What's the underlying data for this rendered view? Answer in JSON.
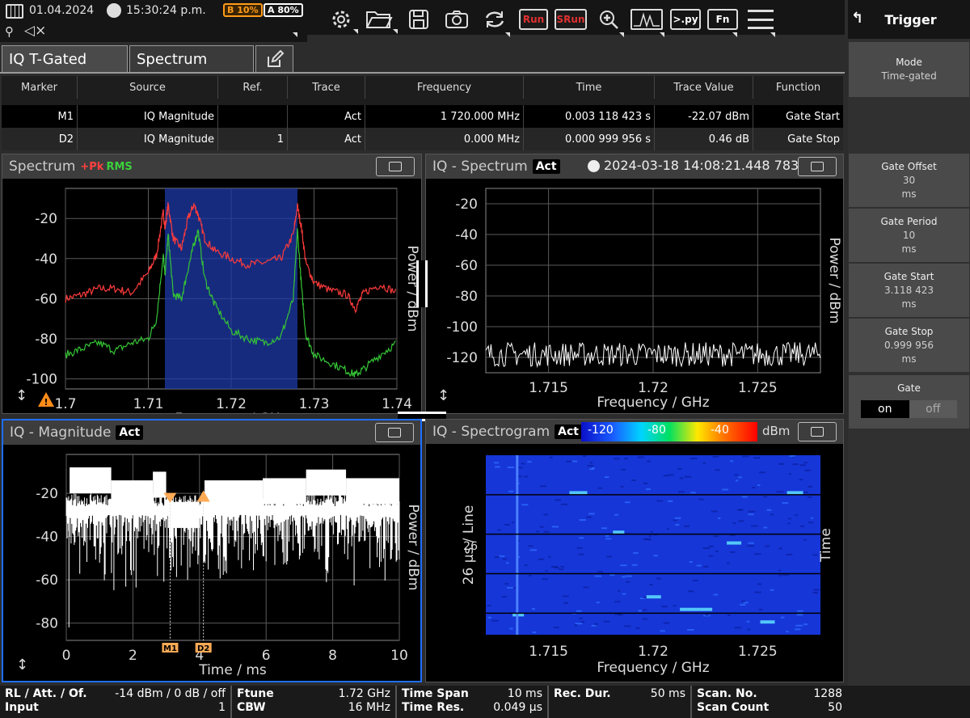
{
  "topbar": {
    "date": "01.04.2024",
    "time": "15:30:24 p.m.",
    "battery_b": "B 10%",
    "battery_a": "A 80%",
    "run_label": "Run",
    "srun_label": "SRun",
    "py_label": ">.py",
    "fn_label": "Fn"
  },
  "tabs": [
    {
      "label": "IQ T-Gated"
    },
    {
      "label": "Spectrum"
    }
  ],
  "marker_table": {
    "headers": [
      "Marker",
      "Source",
      "Ref.",
      "Trace",
      "Frequency",
      "Time",
      "Trace Value",
      "Function"
    ],
    "rows": [
      [
        "M1",
        "IQ Magnitude",
        "",
        "Act",
        "1 720.000 MHz",
        "0.003 118 423 s",
        "-22.07 dBm",
        "Gate Start"
      ],
      [
        "D2",
        "IQ Magnitude",
        "1",
        "Act",
        "0.000 MHz",
        "0.000 999 956 s",
        "0.46 dB",
        "Gate Stop"
      ]
    ]
  },
  "panels": {
    "spectrum": {
      "title": "Spectrum",
      "pk": "+Pk",
      "rms": "RMS"
    },
    "iq_spectrum": {
      "title": "IQ - Spectrum",
      "act": "Act",
      "timestamp": "2024-03-18 14:08:21.448 783"
    },
    "iq_magnitude": {
      "title": "IQ - Magnitude",
      "act": "Act"
    },
    "spectrogram": {
      "title": "IQ - Spectrogram",
      "act": "Act",
      "unit": "dBm",
      "scale": [
        "-120",
        "-80",
        "-40"
      ],
      "ylabel": "26 µs / Line",
      "right_label": "Time",
      "y_tick": "26"
    }
  },
  "chart_data": [
    {
      "type": "line",
      "title": "Spectrum",
      "xlabel": "Frequency / GHz",
      "ylabel": "Power / dBm",
      "xlim": [
        1.7,
        1.74
      ],
      "ylim": [
        -105,
        -5
      ],
      "x_ticks": [
        "1.7",
        "1.71",
        "1.72",
        "1.73",
        "1.74"
      ],
      "y_ticks": [
        "-20",
        "-40",
        "-60",
        "-80",
        "-100"
      ],
      "gate_region": [
        1.712,
        1.728
      ],
      "series": [
        {
          "name": "+Pk",
          "color": "#ff3b3b",
          "x": [
            1.7,
            1.702,
            1.704,
            1.706,
            1.708,
            1.71,
            1.711,
            1.7118,
            1.712,
            1.7124,
            1.713,
            1.714,
            1.7148,
            1.7155,
            1.716,
            1.7168,
            1.718,
            1.72,
            1.722,
            1.724,
            1.726,
            1.7275,
            1.728,
            1.7285,
            1.729,
            1.73,
            1.732,
            1.734,
            1.735,
            1.736,
            1.738,
            1.74
          ],
          "y": [
            -60,
            -58,
            -55,
            -55,
            -57,
            -47,
            -38,
            -17,
            -25,
            -13,
            -30,
            -35,
            -20,
            -13,
            -18,
            -30,
            -36,
            -40,
            -43,
            -42,
            -40,
            -28,
            -14,
            -25,
            -42,
            -52,
            -56,
            -58,
            -65,
            -57,
            -53,
            -57
          ]
        },
        {
          "name": "RMS",
          "color": "#35c435",
          "x": [
            1.7,
            1.702,
            1.704,
            1.706,
            1.708,
            1.71,
            1.711,
            1.7118,
            1.712,
            1.7124,
            1.713,
            1.714,
            1.7148,
            1.7155,
            1.716,
            1.7168,
            1.718,
            1.72,
            1.722,
            1.724,
            1.726,
            1.7275,
            1.728,
            1.7285,
            1.729,
            1.73,
            1.732,
            1.734,
            1.735,
            1.736,
            1.738,
            1.74
          ],
          "y": [
            -88,
            -85,
            -82,
            -86,
            -82,
            -80,
            -70,
            -38,
            -48,
            -28,
            -58,
            -60,
            -45,
            -33,
            -26,
            -50,
            -63,
            -76,
            -80,
            -82,
            -79,
            -60,
            -26,
            -55,
            -78,
            -88,
            -92,
            -96,
            -98,
            -95,
            -88,
            -82
          ]
        }
      ]
    },
    {
      "type": "line",
      "title": "IQ - Spectrum",
      "xlabel": "Frequency / GHz",
      "ylabel": "Power / dBm",
      "xlim": [
        1.712,
        1.728
      ],
      "ylim": [
        -130,
        -10
      ],
      "x_ticks": [
        "1.715",
        "1.72",
        "1.725"
      ],
      "y_ticks": [
        "-20",
        "-40",
        "-60",
        "-80",
        "-100",
        "-120"
      ],
      "series": [
        {
          "name": "Act",
          "color": "#ffffff",
          "level": -118,
          "spread": 8
        }
      ]
    },
    {
      "type": "line",
      "title": "IQ - Magnitude",
      "xlabel": "Time / ms",
      "ylabel": "Power / dBm",
      "xlim": [
        0,
        10
      ],
      "ylim": [
        -88,
        -2
      ],
      "x_ticks": [
        "0",
        "2",
        "4",
        "6",
        "8",
        "10"
      ],
      "y_ticks": [
        "-20",
        "-40",
        "-60",
        "-80"
      ],
      "markers": [
        {
          "label": "M1",
          "x": 3.118,
          "y": -22.07
        },
        {
          "label": "D2",
          "x": 4.118,
          "y": -21.61
        }
      ],
      "series": [
        {
          "name": "Act",
          "color": "#ffffff",
          "upper": -14,
          "lower": -42
        }
      ]
    },
    {
      "type": "heatmap",
      "title": "IQ - Spectrogram",
      "xlabel": "Frequency / GHz",
      "xlim": [
        1.712,
        1.728
      ],
      "x_ticks": [
        "1.715",
        "1.72",
        "1.725"
      ]
    }
  ],
  "right_panel": {
    "back": "↰",
    "title": "Trigger",
    "items": [
      {
        "label": "Mode",
        "value": "Time-gated"
      },
      {
        "label": "Gate Offset",
        "value": "30",
        "unit": "ms"
      },
      {
        "label": "Gate Period",
        "value": "10",
        "unit": "ms"
      },
      {
        "label": "Gate Start",
        "value": "3.118 423",
        "unit": "ms"
      },
      {
        "label": "Gate Stop",
        "value": "0.999 956",
        "unit": "ms"
      },
      {
        "label": "Gate",
        "on": "on",
        "off": "off"
      }
    ]
  },
  "status": {
    "rl_label": "RL / Att. / Of.",
    "rl_value": "-14 dBm / 0 dB / off",
    "input_label": "Input",
    "input_value": "1",
    "ftune_label": "Ftune",
    "ftune_value": "1.72 GHz",
    "cbw_label": "CBW",
    "cbw_value": "16 MHz",
    "tspan_label": "Time Span",
    "tspan_value": "10 ms",
    "tres_label": "Time Res.",
    "tres_value": "0.049 µs",
    "recdur_label": "Rec. Dur.",
    "recdur_value": "50 ms",
    "scanno_label": "Scan. No.",
    "scanno_value": "1288",
    "scancount_label": "Scan Count",
    "scancount_value": "50"
  }
}
